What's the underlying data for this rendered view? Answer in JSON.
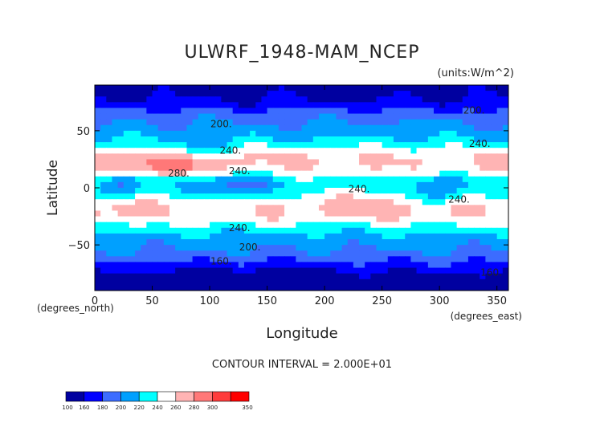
{
  "chart_data": {
    "type": "heatmap",
    "title": "ULWRF_1948-MAM_NCEP",
    "units_label": "(units:W/m^2)",
    "xlabel": "Longitude",
    "ylabel": "Latitude",
    "x_unit_label": "(degrees_east)",
    "y_unit_label": "(degrees_north)",
    "xlim": [
      0,
      360
    ],
    "ylim": [
      -90,
      90
    ],
    "x_ticks": [
      0,
      50,
      100,
      150,
      200,
      250,
      300,
      350
    ],
    "y_ticks": [
      -50,
      0,
      50
    ],
    "contour_interval_text": "CONTOUR INTERVAL = 2.000E+01",
    "contour_labels": [
      {
        "text": "200.",
        "lon": 110,
        "lat": 53
      },
      {
        "text": "200.",
        "lon": 330,
        "lat": 65
      },
      {
        "text": "240.",
        "lon": 118,
        "lat": 30
      },
      {
        "text": "240.",
        "lon": 335,
        "lat": 36
      },
      {
        "text": "280.",
        "lon": 73,
        "lat": 10
      },
      {
        "text": "240.",
        "lon": 126,
        "lat": 12
      },
      {
        "text": "240.",
        "lon": 230,
        "lat": -4
      },
      {
        "text": "240.",
        "lon": 317,
        "lat": -13
      },
      {
        "text": "240.",
        "lon": 126,
        "lat": -38
      },
      {
        "text": "200.",
        "lon": 135,
        "lat": -55
      },
      {
        "text": "160.",
        "lon": 110,
        "lat": -67
      },
      {
        "text": "160.",
        "lon": 345,
        "lat": -77
      }
    ],
    "colorbar": {
      "levels": [
        "100",
        "160",
        "180",
        "200",
        "220",
        "240",
        "260",
        "280",
        "300",
        "350"
      ],
      "colors": [
        "#0000a0",
        "#0000ff",
        "#3c6cff",
        "#00a0ff",
        "#00ffff",
        "#ffffff",
        "#ffb4b4",
        "#ff7878",
        "#ff3c3c",
        "#ff0000"
      ]
    },
    "field_model": {
      "description_units": "W/m^2",
      "zonal_profile": [
        [
          90,
          150
        ],
        [
          80,
          158
        ],
        [
          72,
          168
        ],
        [
          65,
          190
        ],
        [
          58,
          198
        ],
        [
          50,
          208
        ],
        [
          42,
          222
        ],
        [
          35,
          242
        ],
        [
          28,
          258
        ],
        [
          20,
          262
        ],
        [
          12,
          248
        ],
        [
          5,
          228
        ],
        [
          0,
          232
        ],
        [
          -5,
          238
        ],
        [
          -12,
          250
        ],
        [
          -20,
          258
        ],
        [
          -28,
          250
        ],
        [
          -35,
          232
        ],
        [
          -42,
          215
        ],
        [
          -50,
          205
        ],
        [
          -58,
          195
        ],
        [
          -65,
          180
        ],
        [
          -72,
          165
        ],
        [
          -80,
          148
        ],
        [
          -90,
          140
        ]
      ]
    }
  }
}
